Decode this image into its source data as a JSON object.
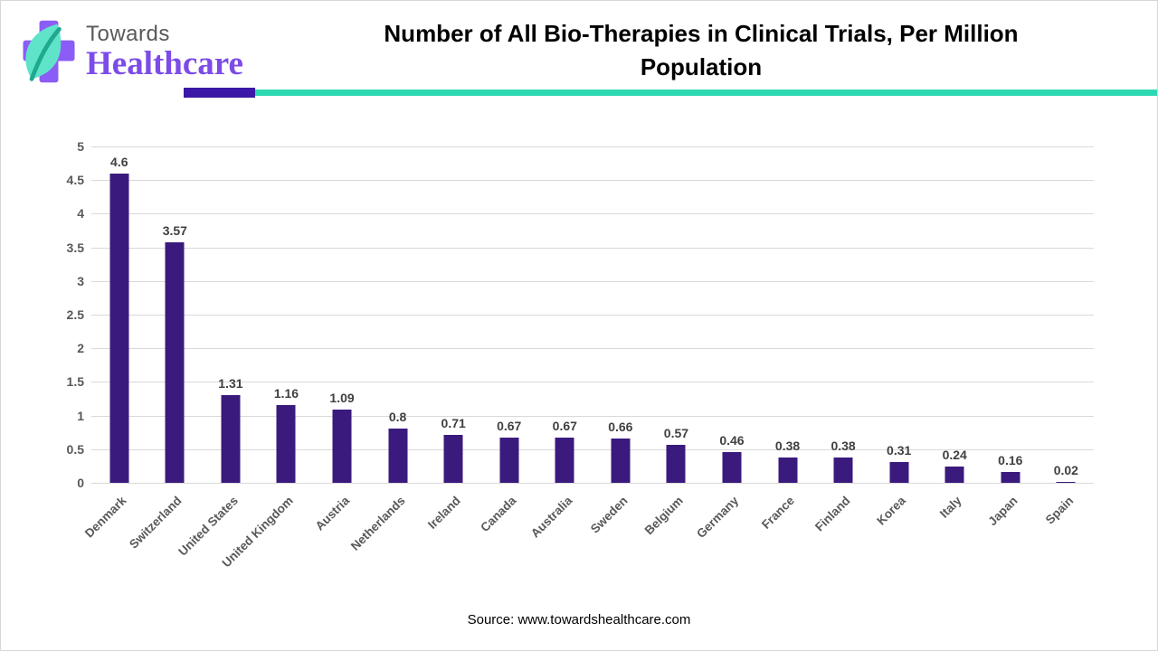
{
  "header": {
    "brand_top": "Towards",
    "brand_bottom": "Healthcare",
    "title_line1": "Number of All Bio-Therapies in Clinical Trials, Per Million",
    "title_line2": "Population"
  },
  "chart_data": {
    "type": "bar",
    "title": "Number of All Bio-Therapies in Clinical Trials, Per Million Population",
    "categories": [
      "Denmark",
      "Switzerland",
      "United States",
      "United Kingdom",
      "Austria",
      "Netherlands",
      "Ireland",
      "Canada",
      "Australia",
      "Sweden",
      "Belgium",
      "Germany",
      "France",
      "Finland",
      "Korea",
      "Italy",
      "Japan",
      "Spain"
    ],
    "values": [
      4.6,
      3.57,
      1.31,
      1.16,
      1.09,
      0.8,
      0.71,
      0.67,
      0.67,
      0.66,
      0.57,
      0.46,
      0.38,
      0.38,
      0.31,
      0.24,
      0.16,
      0.02
    ],
    "xlabel": "",
    "ylabel": "",
    "ylim": [
      0,
      5
    ],
    "y_ticks": [
      0,
      0.5,
      1,
      1.5,
      2,
      2.5,
      3,
      3.5,
      4,
      4.5,
      5
    ],
    "grid": true,
    "legend": "none",
    "bar_color": "#3b1a7d",
    "value_label_color": "#404040",
    "axis_label_color": "#595959",
    "gridline_color": "#d9d9d9"
  },
  "footer": {
    "source": "Source: www.towardshealthcare.com"
  },
  "colors": {
    "accent_purple": "#3b18a5",
    "accent_teal": "#2ed9b2",
    "logo_cross_purple": "#8b5cf6",
    "logo_leaf_teal": "#5fe3c9",
    "logo_leaf_dark_teal": "#1fa98f",
    "brand_top_gray": "#58595b",
    "brand_bottom_purple": "#7c4be8"
  }
}
